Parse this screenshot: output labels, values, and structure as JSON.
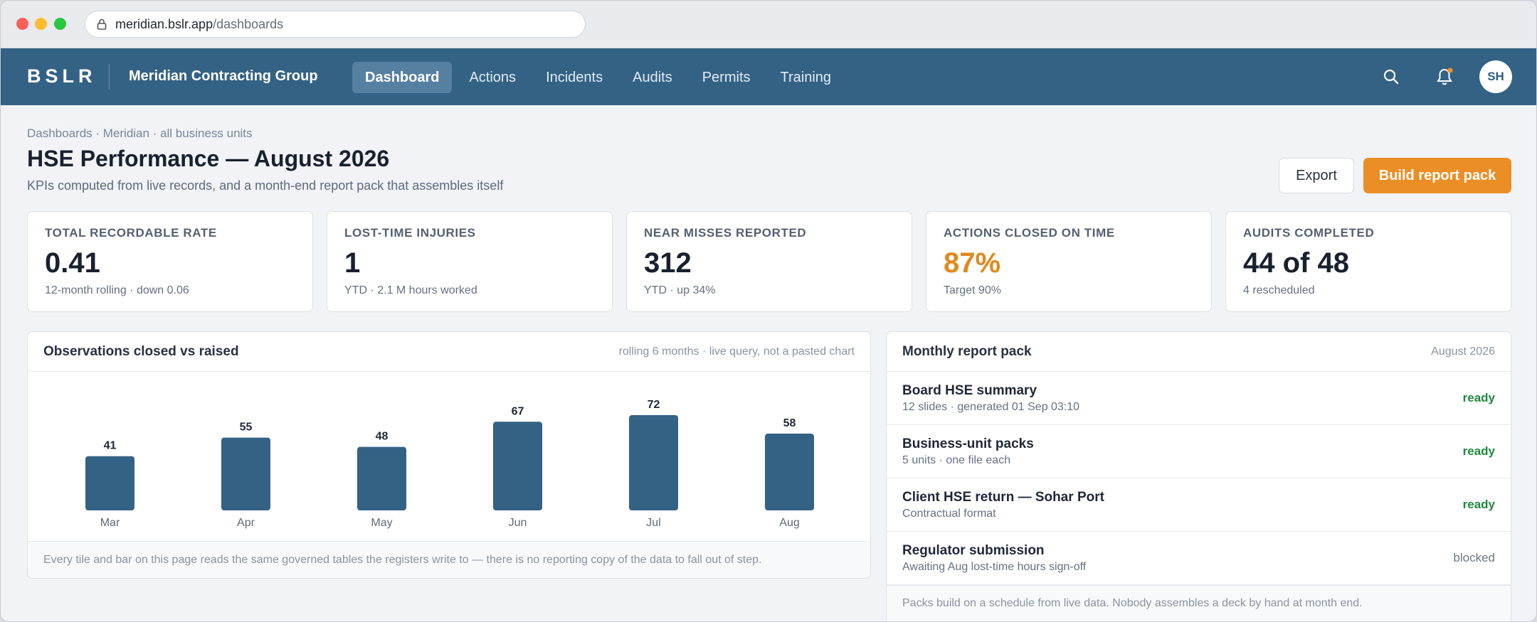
{
  "browser": {
    "url_host": "meridian.bslr.app",
    "url_path": "/dashboards"
  },
  "nav": {
    "brand": "BSLR",
    "org": "Meridian Contracting Group",
    "links": [
      "Dashboard",
      "Actions",
      "Incidents",
      "Audits",
      "Permits",
      "Training"
    ],
    "active": "Dashboard",
    "avatar_initials": "SH",
    "bell_badge_color": "#f28c28"
  },
  "header": {
    "breadcrumb": "Dashboards · Meridian · all business units",
    "title": "HSE Performance — August 2026",
    "subtitle": "KPIs computed from live records, and a month-end report pack that assembles itself",
    "export_label": "Export",
    "build_label": "Build report pack"
  },
  "kpis": [
    {
      "label": "TOTAL RECORDABLE RATE",
      "value": "0.41",
      "note": "12-month rolling · down 0.06"
    },
    {
      "label": "LOST-TIME INJURIES",
      "value": "1",
      "note": "YTD · 2.1 M hours worked"
    },
    {
      "label": "NEAR MISSES REPORTED",
      "value": "312",
      "note": "YTD · up 34%"
    },
    {
      "label": "ACTIONS CLOSED ON TIME",
      "value": "87%",
      "note": "Target 90%"
    },
    {
      "label": "AUDITS COMPLETED",
      "value": "44 of 48",
      "note": "4 rescheduled"
    }
  ],
  "chart_panel": {
    "title": "Observations closed vs raised",
    "meta": "rolling 6 months · live query, not a pasted chart",
    "footer": "Every tile and bar on this page reads the same governed tables the registers write to — there is no reporting copy of the data to fall out of step."
  },
  "chart_data": {
    "type": "bar",
    "categories": [
      "Mar",
      "Apr",
      "May",
      "Jun",
      "Jul",
      "Aug"
    ],
    "values": [
      41,
      55,
      48,
      67,
      72,
      58
    ],
    "title": "Observations closed vs raised",
    "xlabel": "",
    "ylabel": "",
    "bar_color": "#336285"
  },
  "pack_panel": {
    "title": "Monthly report pack",
    "meta": "August 2026",
    "rows": [
      {
        "name": "Board HSE summary",
        "detail": "12 slides · generated 01 Sep 03:10",
        "status": "ready"
      },
      {
        "name": "Business-unit packs",
        "detail": "5 units · one file each",
        "status": "ready"
      },
      {
        "name": "Client HSE return — Sohar Port",
        "detail": "Contractual format",
        "status": "ready"
      },
      {
        "name": "Regulator submission",
        "detail": "Awaiting Aug lost-time hours sign-off",
        "status": "blocked"
      }
    ],
    "footer": "Packs build on a schedule from live data. Nobody assembles a deck by hand at month end."
  }
}
